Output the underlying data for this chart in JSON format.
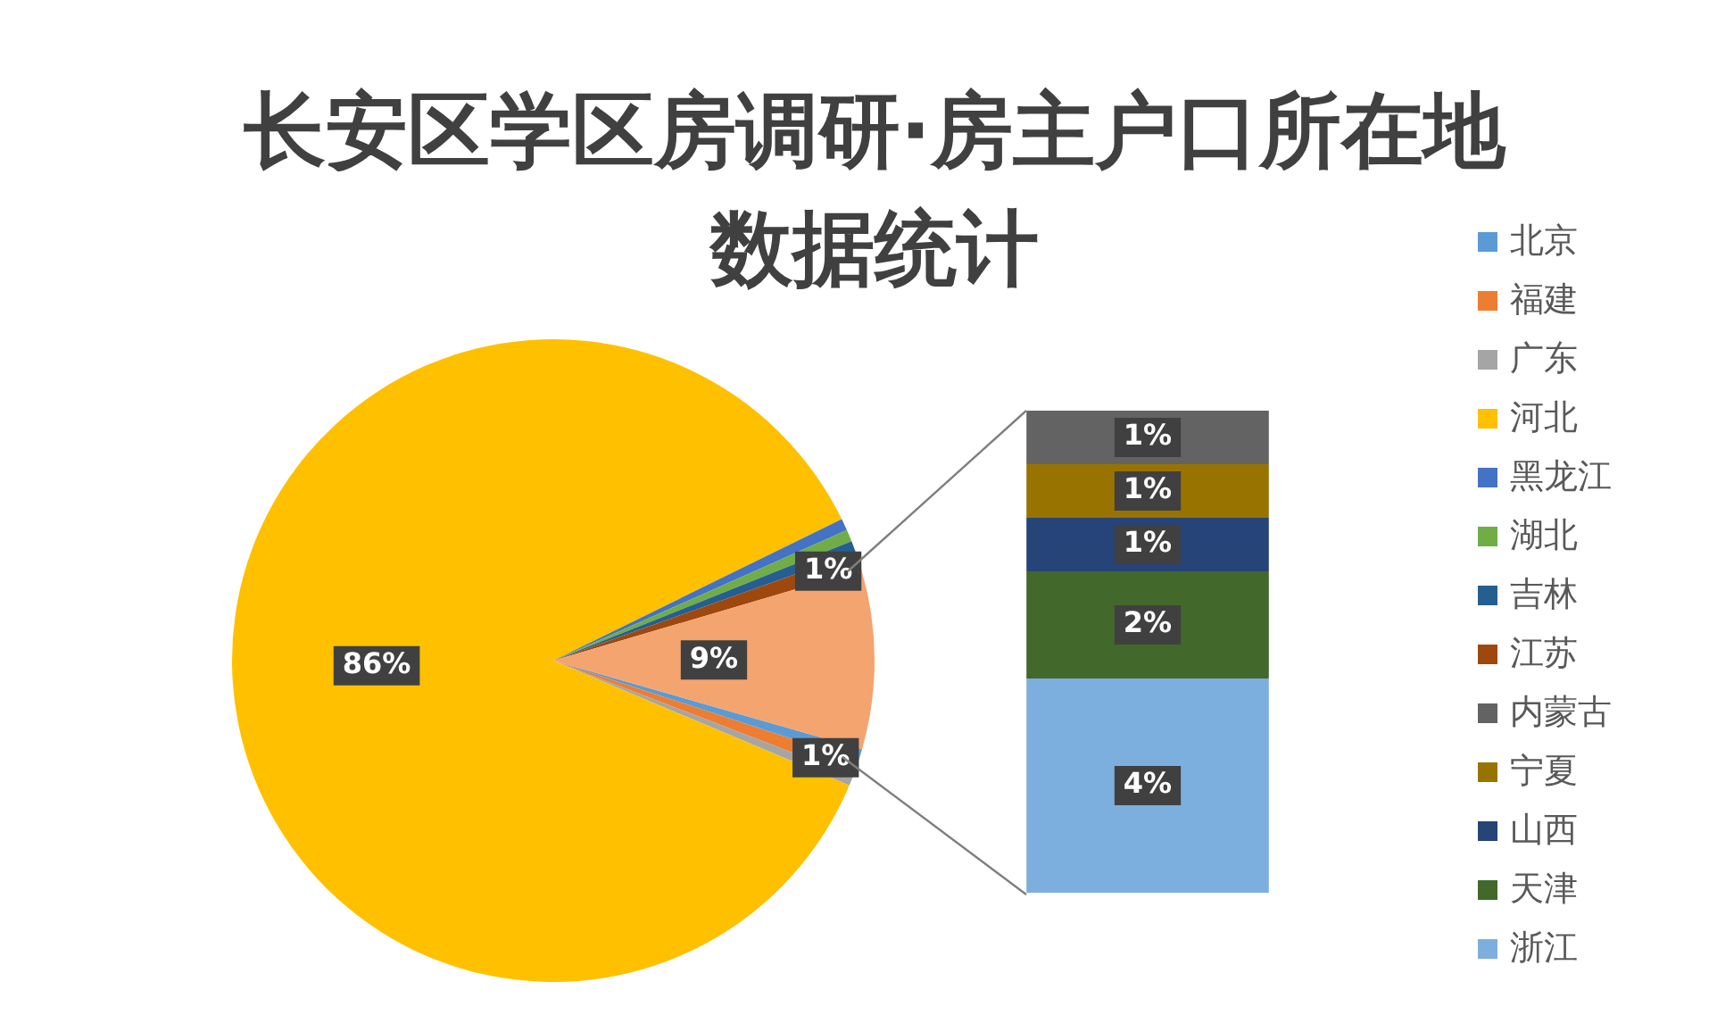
{
  "chart_data": [
    {
      "type": "pie",
      "title": "长安区学区房调研·房主户口所在地数据统计",
      "legend": "right",
      "categories": [
        "北京",
        "福建",
        "广东",
        "河北",
        "黑龙江",
        "湖北",
        "吉林",
        "江苏",
        null
      ],
      "values": [
        0.6,
        0.8,
        0.5,
        86.4,
        0.6,
        0.6,
        0.6,
        0.9,
        9
      ],
      "colors": [
        "#5b9bd5",
        "#ed7d31",
        "#a5a5a5",
        "#ffc000",
        "#4472c4",
        "#70ad47",
        "#255e91",
        "#9e480e",
        "#f4a46e"
      ],
      "value_labels": [
        null,
        "1%",
        null,
        "86%",
        null,
        null,
        null,
        "1%",
        "9%"
      ]
    },
    {
      "type": "bar",
      "stacked": true,
      "legend": "right",
      "categories": [
        null
      ],
      "series": [
        {
          "name": "浙江",
          "color": "#7cafdd",
          "values": [
            4
          ],
          "value_labels": [
            "4%"
          ]
        },
        {
          "name": "天津",
          "color": "#43682b",
          "values": [
            2
          ],
          "value_labels": [
            "2%"
          ]
        },
        {
          "name": "山西",
          "color": "#264478",
          "values": [
            1
          ],
          "value_labels": [
            "1%"
          ]
        },
        {
          "name": "宁夏",
          "color": "#997300",
          "values": [
            1
          ],
          "value_labels": [
            "1%"
          ]
        },
        {
          "name": "内蒙古",
          "color": "#636363",
          "values": [
            1
          ],
          "value_labels": [
            "1%"
          ]
        }
      ]
    }
  ]
}
